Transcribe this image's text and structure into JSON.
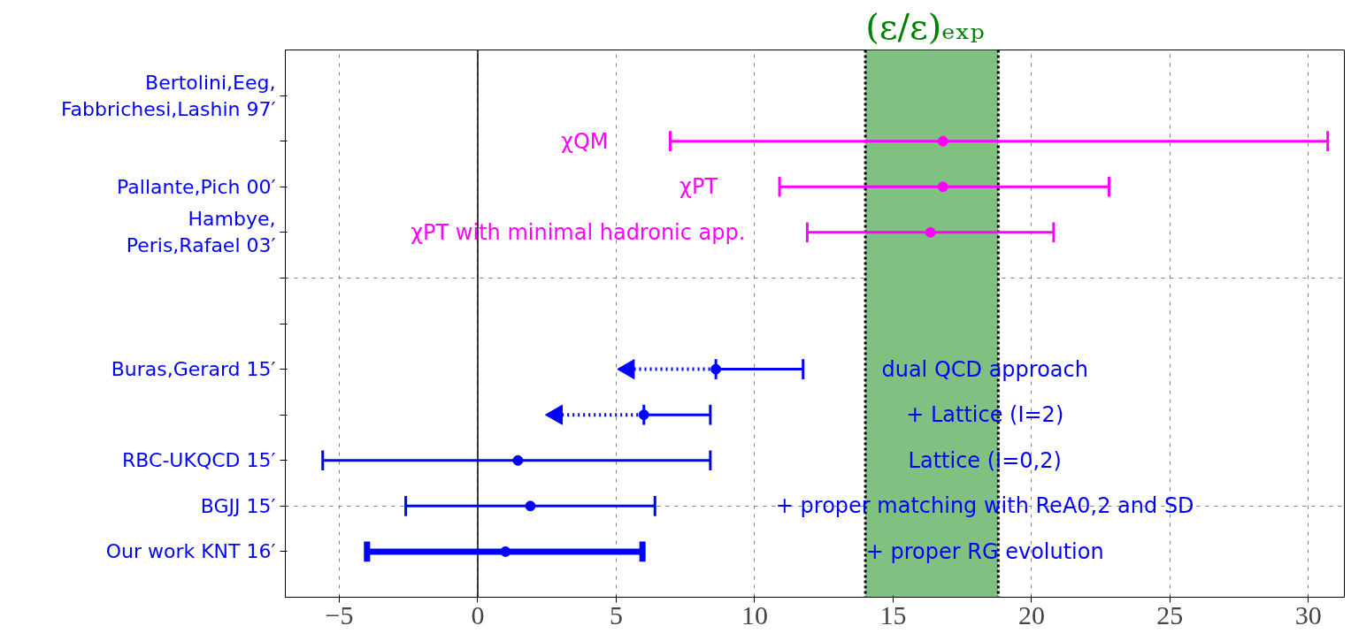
{
  "chart_data": {
    "type": "scatter",
    "orientation": "horizontal",
    "categories": [
      "Bertolini,Eeg,\nFabbrichesi,Lashin 97′",
      null,
      "Pallante,Pich 00′",
      "Hambye,\nPeris,Rafael 03′",
      null,
      null,
      "Buras,Gerard 15′",
      null,
      "RBC-UKQCD 15′",
      "BGJJ 15′",
      "Our work KNT 16′"
    ],
    "xlim": [
      -6.95,
      31.3
    ],
    "xticks": [
      -5,
      0,
      5,
      10,
      15,
      20,
      25,
      30
    ],
    "grid": true,
    "marker": "circle",
    "series": [
      {
        "color": "#ff00ff",
        "values": [
          null,
          16.8,
          16.8,
          16.35,
          null,
          null,
          null,
          null,
          null,
          null,
          null
        ],
        "errors": [
          null,
          [
            6.95,
            30.7
          ],
          [
            10.9,
            22.8
          ],
          [
            11.9,
            20.8
          ],
          null,
          null,
          null,
          null,
          null,
          null,
          null
        ]
      },
      {
        "color": "#0000ff",
        "values": [
          null,
          null,
          null,
          null,
          null,
          null,
          8.6,
          6.0,
          1.45,
          1.9,
          1.0
        ],
        "errors": [
          null,
          null,
          null,
          null,
          null,
          null,
          [
            8.6,
            11.75
          ],
          [
            6.0,
            8.4
          ],
          [
            -5.6,
            8.4
          ],
          [
            -2.6,
            6.4
          ],
          [
            -4.0,
            5.95
          ]
        ]
      },
      {
        "color": "#0000ff",
        "marker": "triangle",
        "line_style": "dotted",
        "values": [
          null,
          null,
          null,
          null,
          null,
          null,
          5.45,
          2.85,
          null,
          null,
          null
        ]
      }
    ],
    "bands": [
      {
        "axis": "x",
        "from": 14.0,
        "to": 18.8,
        "label": "(ε/ε)ₑₓₚ",
        "color": "#80c080"
      }
    ],
    "ref_lines": [
      {
        "axis": "x",
        "value": 14.0,
        "color": "#000000",
        "line_style": "dotted"
      },
      {
        "axis": "x",
        "value": 18.8,
        "color": "#000000",
        "line_style": "dotted"
      },
      {
        "axis": "x",
        "value": 0,
        "color": "#000000",
        "line_style": "solid"
      }
    ],
    "annotations": [
      "χQM",
      "χPT",
      "χPT with minimal hadronic app.",
      "dual QCD approach",
      "+ Lattice (I=2)",
      "Lattice (I=0,2)",
      "+ proper matching with ReA0,2 and SD",
      "+ proper RG evolution"
    ]
  }
}
